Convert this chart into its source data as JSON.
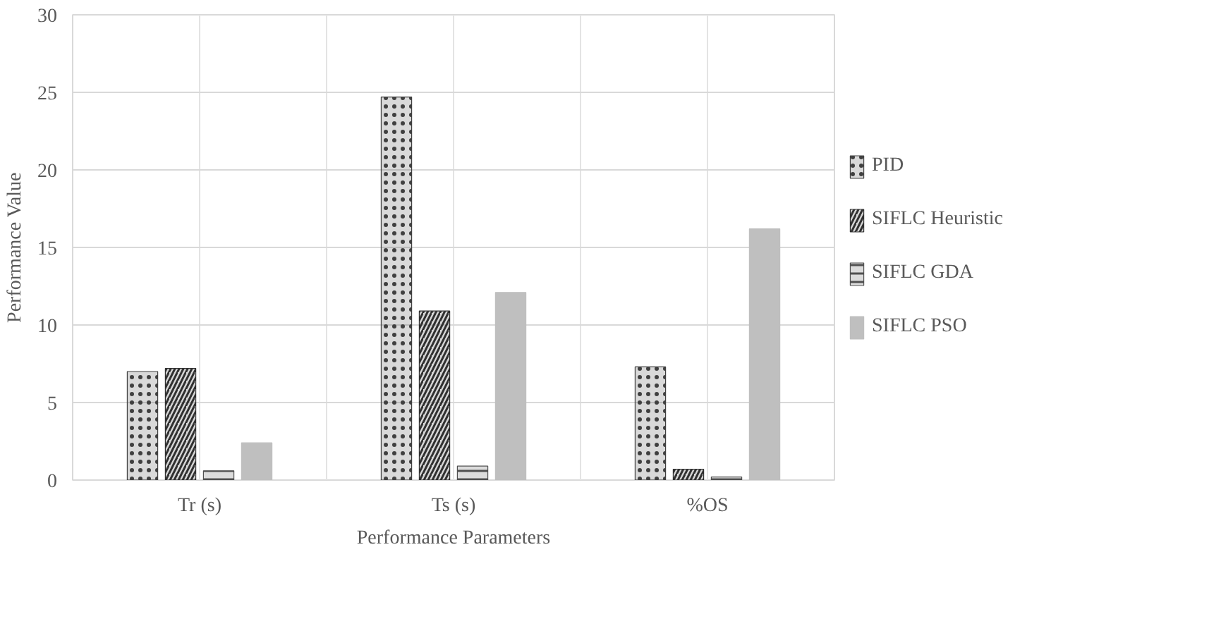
{
  "chart_data": {
    "type": "bar",
    "xlabel": "Performance Parameters",
    "ylabel": "Performance Value",
    "categories": [
      "Tr (s)",
      "Ts (s)",
      "%OS"
    ],
    "series": [
      {
        "name": "PID",
        "color": "#404040",
        "values": [
          7.0,
          24.7,
          7.3
        ]
      },
      {
        "name": "SIFLC Heuristic",
        "color": "#303030",
        "values": [
          7.2,
          10.9,
          0.7
        ]
      },
      {
        "name": "SIFLC GDA",
        "color": "#505050",
        "values": [
          0.6,
          0.9,
          0.2
        ]
      },
      {
        "name": "SIFLC PSO",
        "color": "#bfbfbf",
        "values": [
          2.4,
          12.1,
          16.2
        ]
      }
    ],
    "ylim": [
      0,
      30
    ],
    "yticks": [
      0,
      5,
      10,
      15,
      20,
      25,
      30
    ],
    "grid": true,
    "legend": "right"
  }
}
